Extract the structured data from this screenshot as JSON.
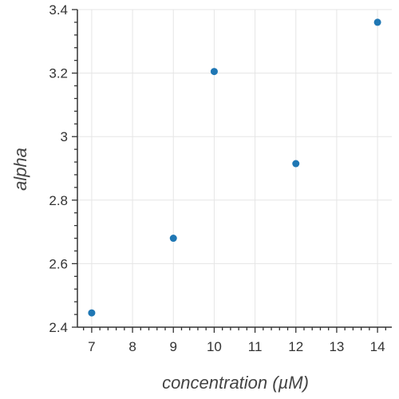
{
  "chart_data": {
    "type": "scatter",
    "title": "",
    "xlabel": "concentration (µM)",
    "ylabel": "alpha",
    "xlim": [
      6.65,
      14.35
    ],
    "ylim": [
      2.4,
      3.4
    ],
    "x_ticks": [
      7,
      8,
      9,
      10,
      11,
      12,
      13,
      14
    ],
    "y_ticks": [
      2.4,
      2.6,
      2.8,
      3.0,
      3.2,
      3.4
    ],
    "y_tick_labels": [
      "2.4",
      "2.6",
      "2.8",
      "3",
      "3.2",
      "3.4"
    ],
    "grid": true,
    "legend": "none",
    "series": [
      {
        "x": [
          7,
          9,
          10,
          12,
          14
        ],
        "y": [
          2.445,
          2.68,
          3.205,
          2.915,
          3.36
        ],
        "color": "#1f77b4"
      }
    ]
  }
}
